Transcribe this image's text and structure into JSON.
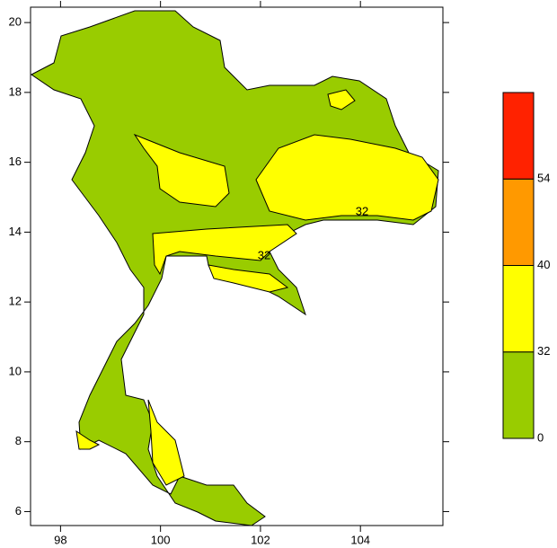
{
  "axes": {
    "xlim": [
      97.4,
      105.65
    ],
    "ylim": [
      5.6,
      20.44
    ],
    "xticks": [
      98,
      100,
      102,
      104
    ],
    "yticks": [
      6,
      8,
      10,
      12,
      14,
      16,
      18,
      20
    ]
  },
  "colorbar": {
    "levels": [
      0,
      32,
      40,
      54
    ],
    "colors": [
      "#99cc00",
      "#ffff00",
      "#ff9900",
      "#ff2200"
    ]
  },
  "contour_labels": [
    32,
    32
  ]
}
